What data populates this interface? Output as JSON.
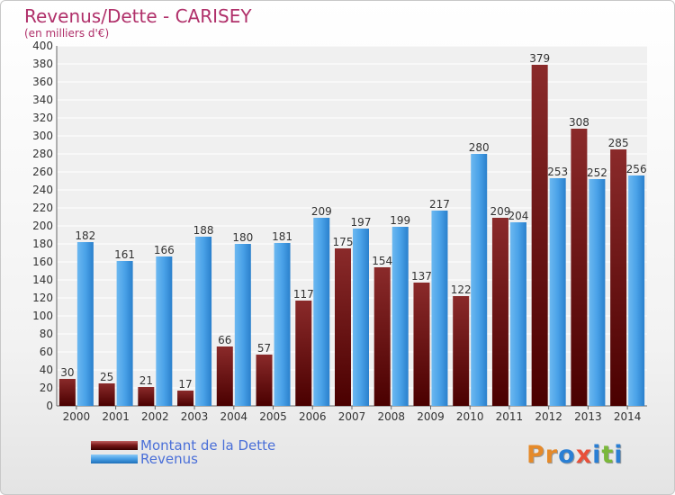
{
  "header": {
    "title": "Revenus/Dette - CARISEY",
    "subtitle": "(en milliers d'€)"
  },
  "colors": {
    "title": "#b0306a",
    "dette": "#7a1818",
    "revenus": "#4aa2e8",
    "legend_text": "#4a6fd8"
  },
  "legend": {
    "items": [
      {
        "label": "Montant de la Dette",
        "color": "#7a1818"
      },
      {
        "label": "Revenus",
        "color": "#4aa2e8"
      }
    ]
  },
  "logo": {
    "text": "Proxiti"
  },
  "chart_data": {
    "type": "bar",
    "title": "Revenus/Dette - CARISEY",
    "subtitle": "(en milliers d'€)",
    "categories": [
      "2000",
      "2001",
      "2002",
      "2003",
      "2004",
      "2005",
      "2006",
      "2007",
      "2008",
      "2009",
      "2010",
      "2011",
      "2012",
      "2013",
      "2014"
    ],
    "series": [
      {
        "name": "Montant de la Dette",
        "values": [
          30,
          25,
          21,
          17,
          66,
          57,
          117,
          175,
          154,
          137,
          122,
          209,
          379,
          308,
          285
        ]
      },
      {
        "name": "Revenus",
        "values": [
          182,
          161,
          166,
          188,
          180,
          181,
          209,
          197,
          199,
          217,
          280,
          204,
          253,
          252,
          256
        ]
      }
    ],
    "ylim": [
      0,
      400
    ],
    "ytick_step": 20,
    "grid": true,
    "legend_position": "bottom-left"
  }
}
